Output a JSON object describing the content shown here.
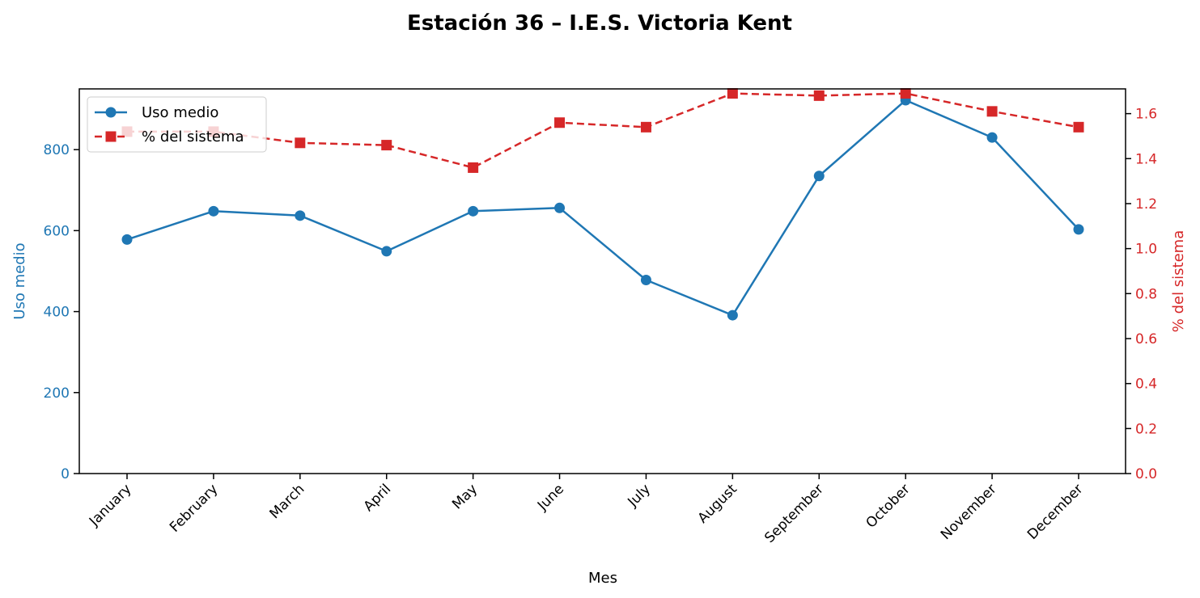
{
  "chart_data": {
    "type": "line",
    "title": "Estación 36 – I.E.S. Victoria Kent",
    "xlabel": "Mes",
    "ylabel_left": "Uso medio",
    "ylabel_right": "% del sistema",
    "categories": [
      "January",
      "February",
      "March",
      "April",
      "May",
      "June",
      "July",
      "August",
      "September",
      "October",
      "November",
      "December"
    ],
    "ylim_left": [
      0,
      950
    ],
    "ylim_right": [
      0,
      1.71
    ],
    "yticks_left": [
      0,
      200,
      400,
      600,
      800
    ],
    "yticks_right": [
      0.0,
      0.2,
      0.4,
      0.6,
      0.8,
      1.0,
      1.2,
      1.4,
      1.6
    ],
    "yticks_right_labels": [
      "0.0",
      "0.2",
      "0.4",
      "0.6",
      "0.8",
      "1.0",
      "1.2",
      "1.4",
      "1.6"
    ],
    "grid": false,
    "legend_position": "top-left",
    "series": [
      {
        "name": "Uso medio",
        "axis": "left",
        "style": "solid",
        "marker": "circle",
        "color": "#1f77b4",
        "values": [
          578,
          648,
          637,
          549,
          648,
          656,
          478,
          391,
          735,
          922,
          830,
          603
        ]
      },
      {
        "name": "% del sistema",
        "axis": "right",
        "style": "dashed",
        "marker": "square",
        "color": "#d62728",
        "values": [
          1.52,
          1.52,
          1.47,
          1.46,
          1.36,
          1.56,
          1.54,
          1.69,
          1.68,
          1.69,
          1.61,
          1.54
        ]
      }
    ]
  }
}
